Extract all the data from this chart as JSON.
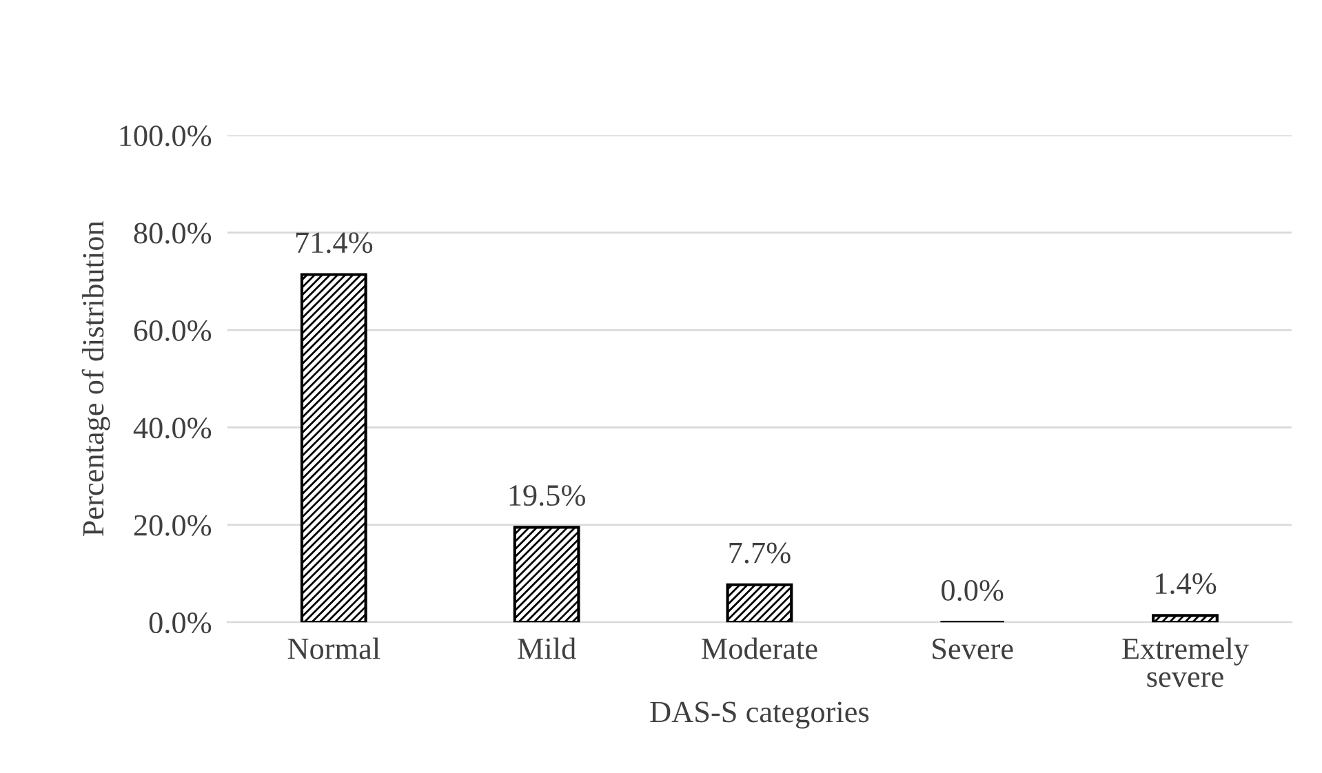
{
  "chart_data": {
    "type": "bar",
    "xlabel": "DAS-S categories",
    "ylabel": "Percentage of distribution",
    "categories": [
      "Normal",
      "Mild",
      "Moderate",
      "Severe",
      "Extremely severe"
    ],
    "values": [
      71.4,
      19.5,
      7.7,
      0.0,
      1.4
    ],
    "value_labels": [
      "71.4%",
      "19.5%",
      "7.7%",
      "0.0%",
      "1.4%"
    ],
    "color": "#000000",
    "ylim": [
      0,
      100
    ],
    "yticks": [
      {
        "value": 0,
        "label": "0.0%"
      },
      {
        "value": 20,
        "label": "20.0%"
      },
      {
        "value": 40,
        "label": "40.0%"
      },
      {
        "value": 60,
        "label": "60.0%"
      },
      {
        "value": 80,
        "label": "80.0%"
      },
      {
        "value": 100,
        "label": "100.0%"
      }
    ],
    "grid": "y",
    "legend": false
  }
}
